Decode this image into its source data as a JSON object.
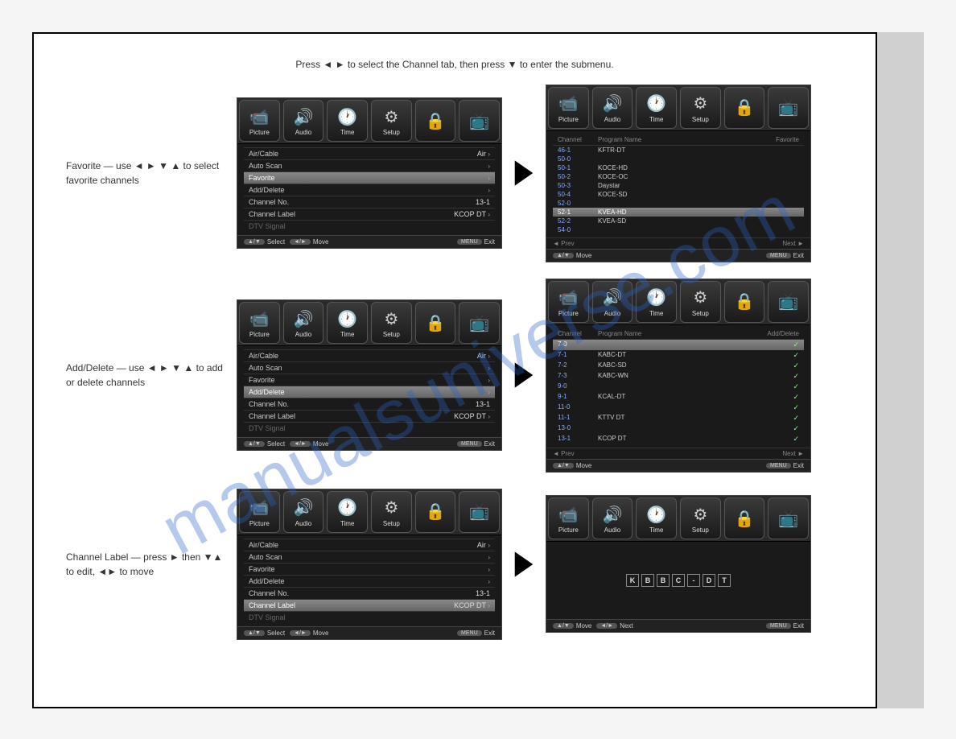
{
  "watermark": "manualsuniverse.com",
  "tabs": [
    {
      "label": "Picture",
      "icon": "📹"
    },
    {
      "label": "Audio",
      "icon": "🔊"
    },
    {
      "label": "Time",
      "icon": "🕐"
    },
    {
      "label": "Setup",
      "icon": "⚙"
    },
    {
      "label": "",
      "icon": "🔒"
    },
    {
      "label": "",
      "icon": "📺"
    }
  ],
  "channel_menu": {
    "rows": [
      {
        "label": "Air/Cable",
        "val": "Air",
        "chev": true
      },
      {
        "label": "Auto Scan",
        "val": "",
        "chev": true
      },
      {
        "label": "Favorite",
        "val": "",
        "chev": true
      },
      {
        "label": "Add/Delete",
        "val": "",
        "chev": true
      },
      {
        "label": "Channel No.",
        "val": "13-1",
        "chev": false
      },
      {
        "label": "Channel Label",
        "val": "KCOP DT",
        "chev": true
      },
      {
        "label": "DTV Signal",
        "val": "",
        "chev": false,
        "dim": true
      }
    ]
  },
  "footer": {
    "select": "Select",
    "move": "Move",
    "exit": "Exit",
    "menu": "MENU",
    "next": "Next",
    "btn_av": "▲/▼",
    "btn_lr": "◄/►"
  },
  "section1": {
    "label_text": "Favorite — use ◄ ► ▼ ▲ to select favorite channels",
    "highlight_index": 2,
    "list_header": {
      "c1": "Channel",
      "c2": "Program Name",
      "c3": "Favorite"
    },
    "channels": [
      {
        "ch": "46-1",
        "name": "KFTR-DT"
      },
      {
        "ch": "50-0",
        "name": ""
      },
      {
        "ch": "50-1",
        "name": "KOCE-HD"
      },
      {
        "ch": "50-2",
        "name": "KOCE-OC"
      },
      {
        "ch": "50-3",
        "name": "Daystar"
      },
      {
        "ch": "50-4",
        "name": "KOCE-SD"
      },
      {
        "ch": "52-0",
        "name": ""
      },
      {
        "ch": "52-1",
        "name": "KVEA-HD",
        "hl": true
      },
      {
        "ch": "52-2",
        "name": "KVEA-SD"
      },
      {
        "ch": "54-0",
        "name": ""
      }
    ],
    "prev": "◄ Prev",
    "next": "Next ►"
  },
  "section2": {
    "label_text": "Add/Delete — use ◄ ► ▼ ▲ to add or delete channels",
    "highlight_index": 3,
    "list_header": {
      "c1": "Channel",
      "c2": "Program Name",
      "c3": "Add/Delete"
    },
    "channels": [
      {
        "ch": "7-0",
        "name": "",
        "hl": true,
        "chk": true
      },
      {
        "ch": "7-1",
        "name": "KABC-DT",
        "chk": true
      },
      {
        "ch": "7-2",
        "name": "KABC-SD",
        "chk": true
      },
      {
        "ch": "7-3",
        "name": "KABC-WN",
        "chk": true
      },
      {
        "ch": "9-0",
        "name": "",
        "chk": true
      },
      {
        "ch": "9-1",
        "name": "KCAL-DT",
        "chk": true
      },
      {
        "ch": "11-0",
        "name": "",
        "chk": true
      },
      {
        "ch": "11-1",
        "name": "KTTV DT",
        "chk": true
      },
      {
        "ch": "13-0",
        "name": "",
        "chk": true
      },
      {
        "ch": "13-1",
        "name": "KCOP DT",
        "chk": true
      }
    ],
    "prev": "◄ Prev",
    "next": "Next ►"
  },
  "section3": {
    "label_text": "Channel Label — press ► then ▼▲ to edit, ◄► to move",
    "highlight_index": 5,
    "label_chars": [
      "K",
      "B",
      "B",
      "C",
      "-",
      "D",
      "T"
    ]
  },
  "instruction_top": "Press ◄ ► to select the Channel tab, then press ▼ to enter the submenu."
}
